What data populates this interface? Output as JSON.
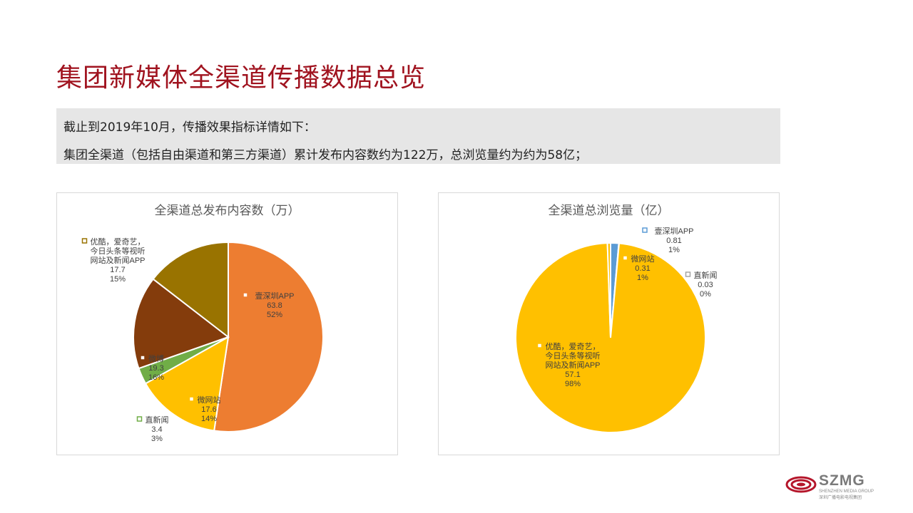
{
  "page": {
    "title": "集团新媒体全渠道传播数据总览",
    "summary_line1": "截止到2019年10月，传播效果指标详情如下：",
    "summary_line2": "集团全渠道（包括自由渠道和第三方渠道）累计发布内容数约为122万，总浏览量约为约为58亿；"
  },
  "logo": {
    "text": "SZMG",
    "sub_en": "SHENZHEN MEDIA GROUP",
    "sub_cn": "深圳广播电影电视集团"
  },
  "chart_data": [
    {
      "type": "pie",
      "title": "全渠道总发布内容数（万）",
      "slices": [
        {
          "name": "壹深圳APP",
          "value": 63.8,
          "percent": "52%",
          "color": "#ed7d31"
        },
        {
          "name": "微网站",
          "value": 17.6,
          "percent": "14%",
          "color": "#ffc000"
        },
        {
          "name": "直新闻",
          "value": 3.4,
          "percent": "3%",
          "color": "#70ad47"
        },
        {
          "name": "微博",
          "value": 19.3,
          "percent": "16%",
          "color": "#843c0c"
        },
        {
          "name": "优酷，爱奇艺，今日头条等视听网站及新闻APP",
          "value": 17.7,
          "percent": "15%",
          "color": "#997300"
        }
      ]
    },
    {
      "type": "pie",
      "title": "全渠道总浏览量（亿）",
      "slices": [
        {
          "name": "壹深圳APP",
          "value": 0.81,
          "percent": "1%",
          "color": "#5b9bd5"
        },
        {
          "name": "直新闻",
          "value": 0.03,
          "percent": "0%",
          "color": "#a5a5a5"
        },
        {
          "name": "优酷，爱奇艺，今日头条等视听网站及新闻APP",
          "value": 57.1,
          "percent": "98%",
          "color": "#ffc000"
        },
        {
          "name": "微网站",
          "value": 0.31,
          "percent": "1%",
          "color": "#ffc000"
        }
      ]
    }
  ]
}
